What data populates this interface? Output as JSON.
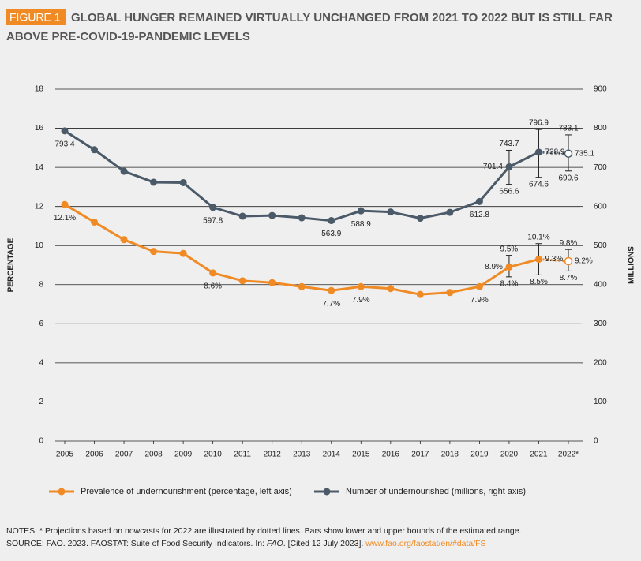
{
  "chart_data": {
    "type": "line",
    "figure_label": "FIGURE 1",
    "title_lines": [
      "GLOBAL HUNGER REMAINED VIRTUALLY UNCHANGED FROM 2021 TO 2022 BUT IS STILL FAR",
      "ABOVE PRE-COVID-19-PANDEMIC LEVELS"
    ],
    "ylabel": "PERCENTAGE",
    "y2label": "MILLIONS",
    "categories": [
      "2005",
      "2006",
      "2007",
      "2008",
      "2009",
      "2010",
      "2011",
      "2012",
      "2013",
      "2014",
      "2015",
      "2016",
      "2017",
      "2018",
      "2019",
      "2020",
      "2021",
      "2022*"
    ],
    "ylim": [
      0,
      18
    ],
    "yticks": [
      0,
      2,
      4,
      6,
      8,
      10,
      12,
      14,
      16,
      18
    ],
    "y2lim": [
      0,
      900
    ],
    "y2ticks": [
      0,
      100,
      200,
      300,
      400,
      500,
      600,
      700,
      800,
      900
    ],
    "grid": true,
    "last_segment_style": "dotted",
    "series": [
      {
        "name": "Prevalence of undernourishment (percentage, left axis)",
        "color": "#f08a24",
        "axis": "y",
        "values": [
          12.1,
          11.2,
          10.3,
          9.7,
          9.6,
          8.6,
          8.2,
          8.1,
          7.9,
          7.7,
          7.9,
          7.8,
          7.5,
          7.6,
          7.9,
          8.9,
          9.3,
          9.2
        ],
        "value_labels": [
          "12.1%",
          null,
          null,
          null,
          null,
          "8.6%",
          null,
          null,
          null,
          "7.7%",
          "7.9%",
          null,
          null,
          null,
          "7.9%",
          "8.9%",
          "9.3%",
          "9.2%"
        ],
        "low": [
          null,
          null,
          null,
          null,
          null,
          null,
          null,
          null,
          null,
          null,
          null,
          null,
          null,
          null,
          null,
          8.4,
          8.5,
          8.7
        ],
        "low_labels": [
          null,
          null,
          null,
          null,
          null,
          null,
          null,
          null,
          null,
          null,
          null,
          null,
          null,
          null,
          null,
          "8.4%",
          "8.5%",
          "8.7%"
        ],
        "high": [
          null,
          null,
          null,
          null,
          null,
          null,
          null,
          null,
          null,
          null,
          null,
          null,
          null,
          null,
          null,
          9.5,
          10.1,
          9.8
        ],
        "high_labels": [
          null,
          null,
          null,
          null,
          null,
          null,
          null,
          null,
          null,
          null,
          null,
          null,
          null,
          null,
          null,
          "9.5%",
          "10.1%",
          "9.8%"
        ]
      },
      {
        "name": "Number of undernourished (millions, right axis)",
        "color": "#4b5a68",
        "axis": "y2",
        "values": [
          793.4,
          745,
          690,
          662,
          661,
          597.8,
          575,
          577,
          571,
          563.9,
          588.9,
          586,
          570,
          585,
          612.8,
          701.4,
          738.9,
          735.1
        ],
        "value_labels": [
          "793.4",
          null,
          null,
          null,
          null,
          "597.8",
          null,
          null,
          null,
          "563.9",
          "588.9",
          null,
          null,
          null,
          "612.8",
          "701.4",
          "738.9",
          "735.1"
        ],
        "low": [
          null,
          null,
          null,
          null,
          null,
          null,
          null,
          null,
          null,
          null,
          null,
          null,
          null,
          null,
          null,
          656.6,
          674.6,
          690.6
        ],
        "high": [
          null,
          null,
          null,
          null,
          null,
          null,
          null,
          null,
          null,
          null,
          null,
          null,
          null,
          null,
          null,
          743.7,
          796.9,
          783.1
        ]
      }
    ]
  },
  "notes": {
    "line1": "NOTES: * Projections based on nowcasts for 2022 are illustrated by dotted lines. Bars show lower and upper bounds of the estimated range.",
    "source_a": "SOURCE: FAO. 2023. FAOSTAT: Suite of Food Security Indicators. In: ",
    "source_b": "FAO",
    "source_c": ". [Cited 12 July 2023]. ",
    "link": "www.fao.org/faostat/en/#data/FS"
  }
}
